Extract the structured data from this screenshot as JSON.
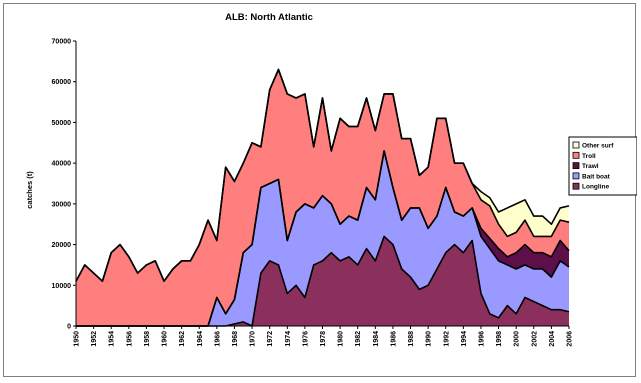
{
  "chart_data": {
    "type": "area",
    "stacked": true,
    "title": "ALB: North Atlantic",
    "xlabel": "",
    "ylabel": "catches (t)",
    "ylim": [
      0,
      70000
    ],
    "yticks": [
      0,
      10000,
      20000,
      30000,
      40000,
      50000,
      60000,
      70000
    ],
    "ytick_labels": [
      "0",
      "10000",
      "20000",
      "30000",
      "40000",
      "50000",
      "60000",
      "70000"
    ],
    "xlim": [
      1950,
      2006
    ],
    "xtick_labels": [
      "1950",
      "1952",
      "1954",
      "1956",
      "1958",
      "1960",
      "1962",
      "1964",
      "1966",
      "1968",
      "1970",
      "1972",
      "1974",
      "1976",
      "1978",
      "1980",
      "1982",
      "1984",
      "1986",
      "1988",
      "1990",
      "1992",
      "1994",
      "1996",
      "1998",
      "2000",
      "2002",
      "2004",
      "2006"
    ],
    "grid": false,
    "legend_position": "right",
    "years": [
      1950,
      1951,
      1952,
      1953,
      1954,
      1955,
      1956,
      1957,
      1958,
      1959,
      1960,
      1961,
      1962,
      1963,
      1964,
      1965,
      1966,
      1967,
      1968,
      1969,
      1970,
      1971,
      1972,
      1973,
      1974,
      1975,
      1976,
      1977,
      1978,
      1979,
      1980,
      1981,
      1982,
      1983,
      1984,
      1985,
      1986,
      1987,
      1988,
      1989,
      1990,
      1991,
      1992,
      1993,
      1994,
      1995,
      1996,
      1997,
      1998,
      1999,
      2000,
      2001,
      2002,
      2003,
      2004,
      2005,
      2006
    ],
    "series": [
      {
        "name": "Longline",
        "color": "#8b2f5d",
        "values": [
          0,
          0,
          0,
          0,
          0,
          0,
          0,
          0,
          0,
          0,
          0,
          0,
          0,
          0,
          0,
          0,
          0,
          0,
          500,
          1000,
          0,
          13000,
          16000,
          15000,
          8000,
          10000,
          7000,
          15000,
          16000,
          18000,
          16000,
          17000,
          15000,
          19000,
          16000,
          22000,
          20000,
          14000,
          12000,
          9000,
          10000,
          14000,
          18000,
          20000,
          18000,
          21000,
          8000,
          3000,
          2000,
          5000,
          3000,
          7000,
          6000,
          5000,
          4000,
          4000,
          3500
        ]
      },
      {
        "name": "Bait boat",
        "color": "#9999ff",
        "values": [
          0,
          0,
          0,
          0,
          0,
          0,
          0,
          0,
          0,
          0,
          0,
          0,
          0,
          0,
          0,
          0,
          7000,
          3000,
          6000,
          17000,
          20000,
          21000,
          19000,
          21000,
          13000,
          18000,
          23000,
          14000,
          16000,
          12000,
          9000,
          10000,
          11000,
          15000,
          15000,
          21000,
          14000,
          12000,
          17000,
          20000,
          14000,
          13000,
          16000,
          8000,
          9000,
          8000,
          14000,
          16000,
          14000,
          10000,
          11000,
          8000,
          8000,
          9000,
          8000,
          12000,
          11000
        ]
      },
      {
        "name": "Trawl",
        "color": "#5c0f48",
        "values": [
          0,
          0,
          0,
          0,
          0,
          0,
          0,
          0,
          0,
          0,
          0,
          0,
          0,
          0,
          0,
          0,
          0,
          0,
          0,
          0,
          0,
          0,
          0,
          0,
          0,
          0,
          0,
          0,
          0,
          0,
          0,
          0,
          0,
          0,
          0,
          0,
          0,
          0,
          0,
          0,
          0,
          0,
          0,
          0,
          0,
          0,
          2000,
          2500,
          3000,
          2000,
          4000,
          5000,
          4000,
          4000,
          5000,
          5000,
          4000
        ]
      },
      {
        "name": "Troll",
        "color": "#ff7f7f",
        "values": [
          11000,
          15000,
          13000,
          11000,
          18000,
          20000,
          17000,
          13000,
          15000,
          16000,
          11000,
          14000,
          16000,
          16000,
          20000,
          26000,
          14000,
          36000,
          29000,
          22000,
          25000,
          10000,
          23000,
          27000,
          36000,
          28000,
          27000,
          15000,
          24000,
          13000,
          26000,
          22000,
          23000,
          22000,
          17000,
          14000,
          23000,
          20000,
          17000,
          8000,
          15000,
          24000,
          17000,
          12000,
          13000,
          6000,
          7000,
          8000,
          6000,
          5000,
          5000,
          6000,
          4000,
          4000,
          5000,
          5000,
          7000
        ]
      },
      {
        "name": "Other surf",
        "color": "#ffffcc",
        "values": [
          0,
          0,
          0,
          0,
          0,
          0,
          0,
          0,
          0,
          0,
          0,
          0,
          0,
          0,
          0,
          0,
          0,
          0,
          0,
          0,
          0,
          0,
          0,
          0,
          0,
          0,
          0,
          0,
          0,
          0,
          0,
          0,
          0,
          0,
          0,
          0,
          0,
          0,
          0,
          0,
          0,
          0,
          0,
          0,
          0,
          0,
          2000,
          2000,
          3000,
          7000,
          7000,
          5000,
          5000,
          5000,
          3000,
          3000,
          4000
        ]
      }
    ]
  }
}
